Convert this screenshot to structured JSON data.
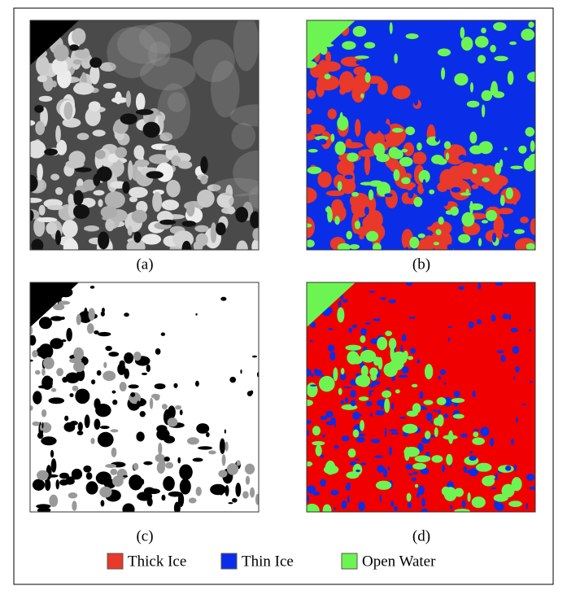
{
  "figure": {
    "panels": [
      {
        "caption": "(a)"
      },
      {
        "caption": "(b)"
      },
      {
        "caption": "(c)"
      },
      {
        "caption": "(d)"
      }
    ],
    "legend": [
      {
        "label": "Thick Ice",
        "color": "#e8392a"
      },
      {
        "label": "Thin Ice",
        "color": "#0a2ee8"
      },
      {
        "label": "Open Water",
        "color": "#6cf552"
      }
    ]
  }
}
